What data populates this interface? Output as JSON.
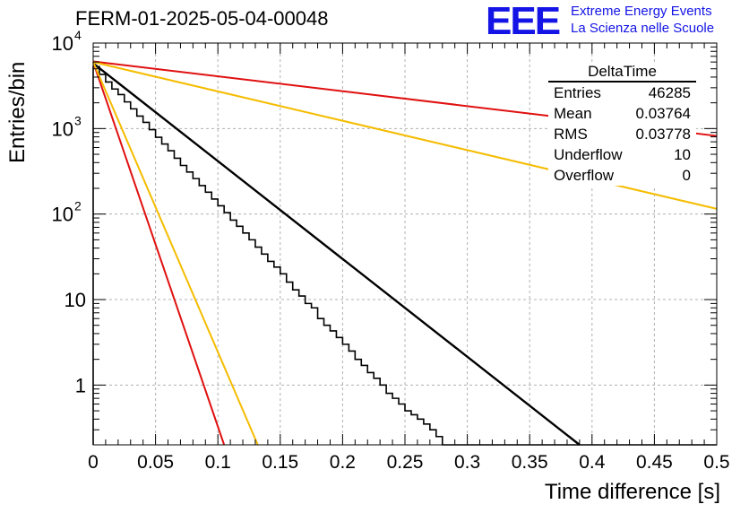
{
  "header": {
    "title": "FERM-01-2025-05-04-00048",
    "logo_letters": "EEE",
    "logo_line1": "Extreme Energy Events",
    "logo_line2": "La Scienza nelle Scuole"
  },
  "stats": {
    "name": "DeltaTime",
    "rows": [
      {
        "label": "Entries",
        "value": "46285"
      },
      {
        "label": "Mean",
        "value": "0.03764"
      },
      {
        "label": "RMS",
        "value": "0.03778"
      },
      {
        "label": "Underflow",
        "value": "10"
      },
      {
        "label": "Overflow",
        "value": "0"
      }
    ]
  },
  "chart_data": {
    "type": "line",
    "title": "FERM-01-2025-05-04-00048",
    "xlabel": "Time difference [s]",
    "ylabel": "Entries/bin",
    "xlim": [
      0,
      0.5
    ],
    "ylim": [
      0.2,
      10000
    ],
    "y_scale": "log",
    "grid": true,
    "x_ticks": [
      "0",
      "0.05",
      "0.1",
      "0.15",
      "0.2",
      "0.25",
      "0.3",
      "0.35",
      "0.4",
      "0.45",
      "0.5"
    ],
    "y_ticks": [
      {
        "value": 1,
        "label": "1"
      },
      {
        "value": 10,
        "label": "10"
      },
      {
        "value": 100,
        "label": "10",
        "exp": "2"
      },
      {
        "value": 1000,
        "label": "10",
        "exp": "3"
      },
      {
        "value": 10000,
        "label": "10",
        "exp": "4"
      }
    ],
    "histogram": {
      "bin_width": 0.005,
      "color": "#000000",
      "counts": [
        5300,
        4300,
        3500,
        2900,
        2500,
        2050,
        1700,
        1400,
        1180,
        970,
        790,
        660,
        550,
        450,
        370,
        310,
        260,
        215,
        180,
        150,
        125,
        104,
        85,
        72,
        60,
        50,
        41,
        34,
        28,
        24,
        20,
        16,
        13,
        11,
        9,
        8,
        6,
        5,
        4.3,
        3.6,
        3,
        2.5,
        2,
        1.7,
        1.4,
        1.2,
        1,
        0.8,
        0.7,
        0.6,
        0.5,
        0.45,
        0.4,
        0.35,
        0.3,
        0.25,
        0.2,
        0.2,
        0.2,
        0.2,
        0.2,
        0.2,
        0.2,
        0.2,
        0.2,
        0.2,
        0.2,
        0.2,
        0.2,
        0.2,
        0.2,
        0.2,
        0.2,
        0.2,
        0.2,
        0.2,
        0.2,
        0.2,
        0.2,
        0.2,
        0.2,
        0.2,
        0.2,
        0.2,
        0.2,
        0.2,
        0.2,
        0.2,
        0.2,
        0.2,
        0.2,
        0.2,
        0.2,
        0.2,
        0.2,
        0.2,
        0.2,
        0.2,
        0.2,
        0.2
      ]
    },
    "series": [
      {
        "color": "#000000",
        "x": [
          0,
          0.39
        ],
        "y": [
          5800,
          0.2
        ]
      },
      {
        "color": "#e01010",
        "x": [
          0,
          0.5
        ],
        "y": [
          6100,
          820
        ]
      },
      {
        "color": "#f5bc00",
        "x": [
          0,
          0.5
        ],
        "y": [
          6000,
          115
        ]
      },
      {
        "color": "#e01010",
        "x": [
          0,
          0.105
        ],
        "y": [
          6000,
          0.2
        ]
      },
      {
        "color": "#f5bc00",
        "x": [
          0,
          0.132
        ],
        "y": [
          6000,
          0.2
        ]
      }
    ]
  }
}
